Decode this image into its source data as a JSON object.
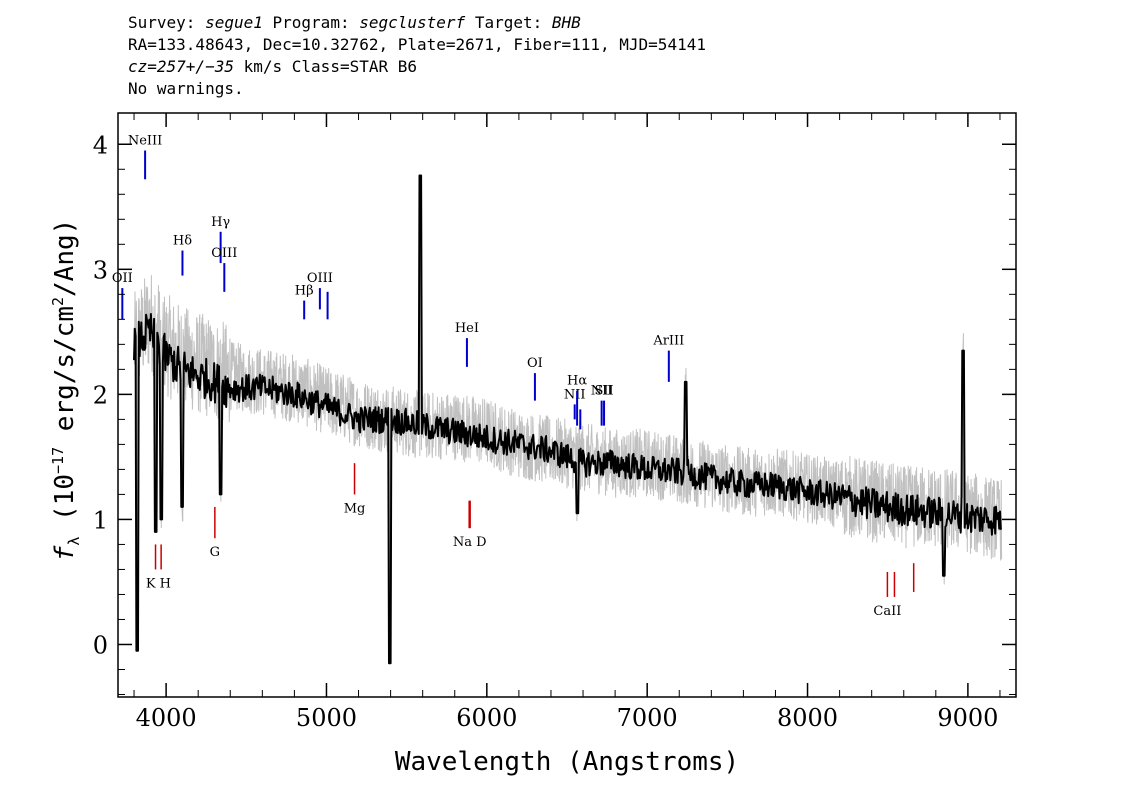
{
  "header": {
    "survey_label": "Survey:",
    "survey": "segue1",
    "program_label": "Program:",
    "program": "segclusterf",
    "target_label": "Target:",
    "target": "BHB",
    "line2": "RA=133.48643, Dec=10.32762, Plate=2671, Fiber=111, MJD=54141",
    "redshift": "cz=257+/−35",
    "redshift_unit": "km/s",
    "class_text": "Class=STAR B6",
    "warnings": "No warnings."
  },
  "chart_data": {
    "type": "line",
    "xlabel": "Wavelength (Angstroms)",
    "ylabel": "f_λ (10^-17 erg/s/cm^2/Ang)",
    "xlim": [
      3700,
      9300
    ],
    "ylim": [
      -0.42,
      4.25
    ],
    "x_ticks": [
      4000,
      5000,
      6000,
      7000,
      8000,
      9000
    ],
    "y_ticks": [
      0,
      1,
      2,
      3,
      4
    ],
    "x_tick_labels": [
      "4000",
      "5000",
      "6000",
      "7000",
      "8000",
      "9000"
    ],
    "y_tick_labels": [
      "0",
      "1",
      "2",
      "3",
      "4"
    ],
    "grid": false,
    "series": [
      {
        "role": "noisy-flux",
        "color": "#c0c0c0",
        "x": [
          3800,
          3900,
          4000,
          4100,
          4200,
          4400,
          4600,
          4800,
          5000,
          5200,
          5400,
          5600,
          5800,
          6000,
          6200,
          6400,
          6600,
          6800,
          7000,
          7200,
          7400,
          7600,
          7800,
          8000,
          8200,
          8400,
          8600,
          8800,
          9000,
          9200
        ],
        "y": [
          2.4,
          2.6,
          2.4,
          2.3,
          2.25,
          2.15,
          2.1,
          2.05,
          1.95,
          1.85,
          1.8,
          1.75,
          1.75,
          1.7,
          1.6,
          1.55,
          1.5,
          1.45,
          1.45,
          1.4,
          1.35,
          1.3,
          1.3,
          1.25,
          1.2,
          1.15,
          1.1,
          1.1,
          1.05,
          1.0
        ]
      },
      {
        "role": "smoothed-flux",
        "color": "#000000",
        "x": [
          3800,
          3900,
          4000,
          4100,
          4200,
          4400,
          4600,
          4800,
          5000,
          5200,
          5400,
          5600,
          5800,
          6000,
          6200,
          6400,
          6600,
          6800,
          7000,
          7200,
          7400,
          7600,
          7800,
          8000,
          8200,
          8400,
          8600,
          8800,
          9000,
          9200
        ],
        "y": [
          2.4,
          2.5,
          2.3,
          2.2,
          2.15,
          2.05,
          2.05,
          2.0,
          1.9,
          1.8,
          1.8,
          1.75,
          1.7,
          1.65,
          1.6,
          1.55,
          1.45,
          1.45,
          1.4,
          1.38,
          1.33,
          1.28,
          1.27,
          1.22,
          1.18,
          1.12,
          1.08,
          1.05,
          1.02,
          1.0
        ]
      }
    ],
    "features": [
      {
        "x": 3820,
        "y": -0.05
      },
      {
        "x": 3935,
        "y": 0.9
      },
      {
        "x": 3970,
        "y": 1.0
      },
      {
        "x": 4102,
        "y": 1.1
      },
      {
        "x": 4341,
        "y": 1.2
      },
      {
        "x": 5394,
        "y": -0.15
      },
      {
        "x": 5586,
        "y": 3.75
      },
      {
        "x": 6563,
        "y": 1.05
      },
      {
        "x": 7240,
        "y": 2.1
      },
      {
        "x": 8970,
        "y": 2.35
      },
      {
        "x": 8850,
        "y": 0.55
      }
    ],
    "emission_lines": [
      {
        "label": "NeIII",
        "x": 3869,
        "y0": 3.72,
        "y1": 3.95
      },
      {
        "label": "Hδ",
        "x": 4102,
        "y0": 2.95,
        "y1": 3.15
      },
      {
        "label": "Hγ",
        "x": 4340,
        "y0": 3.05,
        "y1": 3.3
      },
      {
        "label": "OIII",
        "x": 4363,
        "y0": 2.82,
        "y1": 3.05
      },
      {
        "label": "Hβ",
        "x": 4861,
        "y0": 2.6,
        "y1": 2.75
      },
      {
        "label": "OIII",
        "x": 4959,
        "y0": 2.68,
        "y1": 2.85
      },
      {
        "label": "",
        "x": 5007,
        "y0": 2.6,
        "y1": 2.82
      },
      {
        "label": "HeI",
        "x": 5876,
        "y0": 2.22,
        "y1": 2.45
      },
      {
        "label": "OI",
        "x": 6300,
        "y0": 1.95,
        "y1": 2.17
      },
      {
        "label": "NII",
        "x": 6548,
        "y0": 1.8,
        "y1": 1.92
      },
      {
        "label": "Hα",
        "x": 6563,
        "y0": 1.75,
        "y1": 2.03
      },
      {
        "label": "",
        "x": 6583,
        "y0": 1.72,
        "y1": 1.88
      },
      {
        "label": "NII",
        "x": 6716,
        "y0": 1.75,
        "y1": 1.95
      },
      {
        "label": "SII",
        "x": 6731,
        "y0": 1.75,
        "y1": 1.95
      },
      {
        "label": "ArIII",
        "x": 7135,
        "y0": 2.1,
        "y1": 2.35
      },
      {
        "label": "OII",
        "x": 3727,
        "y0": 2.6,
        "y1": 2.85
      }
    ],
    "absorption_lines": [
      {
        "label": "K",
        "x": 3934,
        "y0": 0.6,
        "y1": 0.8
      },
      {
        "label": "H",
        "x": 3969,
        "y0": 0.6,
        "y1": 0.8
      },
      {
        "label": "G",
        "x": 4304,
        "y0": 0.85,
        "y1": 1.1
      },
      {
        "label": "Mg",
        "x": 5175,
        "y0": 1.2,
        "y1": 1.45
      },
      {
        "label": "Na",
        "x": 5890,
        "y0": 0.93,
        "y1": 1.15
      },
      {
        "label": "D",
        "x": 5896,
        "y0": 0.93,
        "y1": 1.15
      },
      {
        "label": "CaII",
        "x": 8498,
        "y0": 0.38,
        "y1": 0.58
      },
      {
        "label": "",
        "x": 8542,
        "y0": 0.38,
        "y1": 0.58
      },
      {
        "label": "",
        "x": 8662,
        "y0": 0.42,
        "y1": 0.65
      }
    ],
    "label_text": {
      "KH": "K H",
      "NaD": "Na  D",
      "NIIpair": "NII",
      "SIIpair": "SII"
    },
    "colors": {
      "emission": "#0000cc",
      "absorption": "#cc0000"
    }
  }
}
